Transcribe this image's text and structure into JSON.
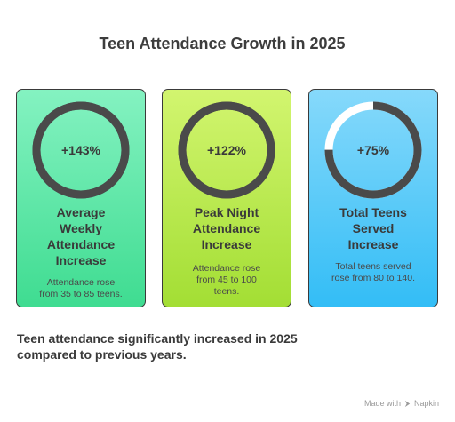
{
  "title": "Teen Attendance Growth in 2025",
  "cards": [
    {
      "metric": "+143%",
      "title_lines": [
        "Average",
        "Weekly",
        "Attendance",
        "Increase"
      ],
      "desc_lines": [
        "Attendance rose",
        "from 35 to 85 teens."
      ],
      "ring_fill": 1.0,
      "color_top": "#84f2c1",
      "color_bottom": "#3fdc91"
    },
    {
      "metric": "+122%",
      "title_lines": [
        "Peak Night",
        "Attendance",
        "Increase"
      ],
      "desc_lines": [
        "Attendance rose",
        "from 45 to 100",
        "teens."
      ],
      "ring_fill": 1.0,
      "color_top": "#d2f56f",
      "color_bottom": "#a3de34"
    },
    {
      "metric": "+75%",
      "title_lines": [
        "Total Teens",
        "Served",
        "Increase"
      ],
      "desc_lines": [
        "Total teens served",
        "rose from 80 to 140."
      ],
      "ring_fill": 0.75,
      "color_top": "#86d9fb",
      "color_bottom": "#33bdf6"
    }
  ],
  "footer_lines": [
    "Teen attendance significantly increased in 2025",
    "compared to previous years."
  ],
  "credit": {
    "prefix": "Made with",
    "brand": "Napkin",
    "icon": "napkin-logo-icon"
  },
  "colors": {
    "ring": "#4a4a4a",
    "ring_track": "#ffffff",
    "border": "#3a3a3a",
    "text": "#3a3a3a"
  }
}
